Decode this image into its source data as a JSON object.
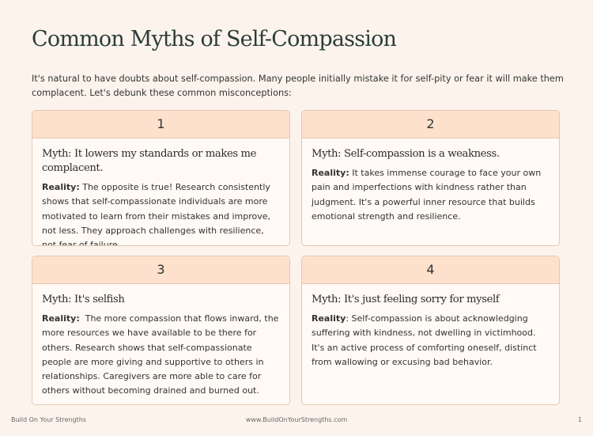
{
  "header": {
    "title": "Common Myths of Self-Compassion",
    "intro": "It's natural to have doubts about self-compassion. Many people initially mistake it for self-pity or fear it will make them complacent. Let's debunk these common misconceptions:"
  },
  "cards": [
    {
      "number": "1",
      "myth": "Myth: It lowers my standards or makes me complacent.",
      "reality_label": "Reality:",
      "reality_text": " The opposite is true! Research consistently shows that self-compassionate individuals are more motivated to learn from their mistakes and improve, not less. They approach challenges with resilience, not fear of failure."
    },
    {
      "number": "2",
      "myth": "Myth: Self-compassion is a weakness.",
      "reality_label": "Reality:",
      "reality_text": " It takes immense courage to face your own pain and imperfections with kindness rather than judgment. It's a powerful inner resource that builds emotional strength and resilience."
    },
    {
      "number": "3",
      "myth": "Myth: It's selfish",
      "reality_label": "Reality:",
      "reality_text": "  The more compassion that flows inward, the more resources we have available to be there for others. Research shows that self-compassionate people are more giving and supportive to others in relationships. Caregivers are more able to care for others without becoming drained and burned out."
    },
    {
      "number": "4",
      "myth": "Myth: It's just feeling sorry for myself",
      "reality_label": "Reality",
      "reality_text": ": Self-compassion is about acknowledging suffering with kindness, not dwelling in victimhood. It's an active process of comforting oneself, distinct from wallowing or excusing bad behavior."
    }
  ],
  "footer": {
    "left": "Build On Your Strengths",
    "center": "www.BuildOnYourStrengths.com",
    "right": "1"
  }
}
